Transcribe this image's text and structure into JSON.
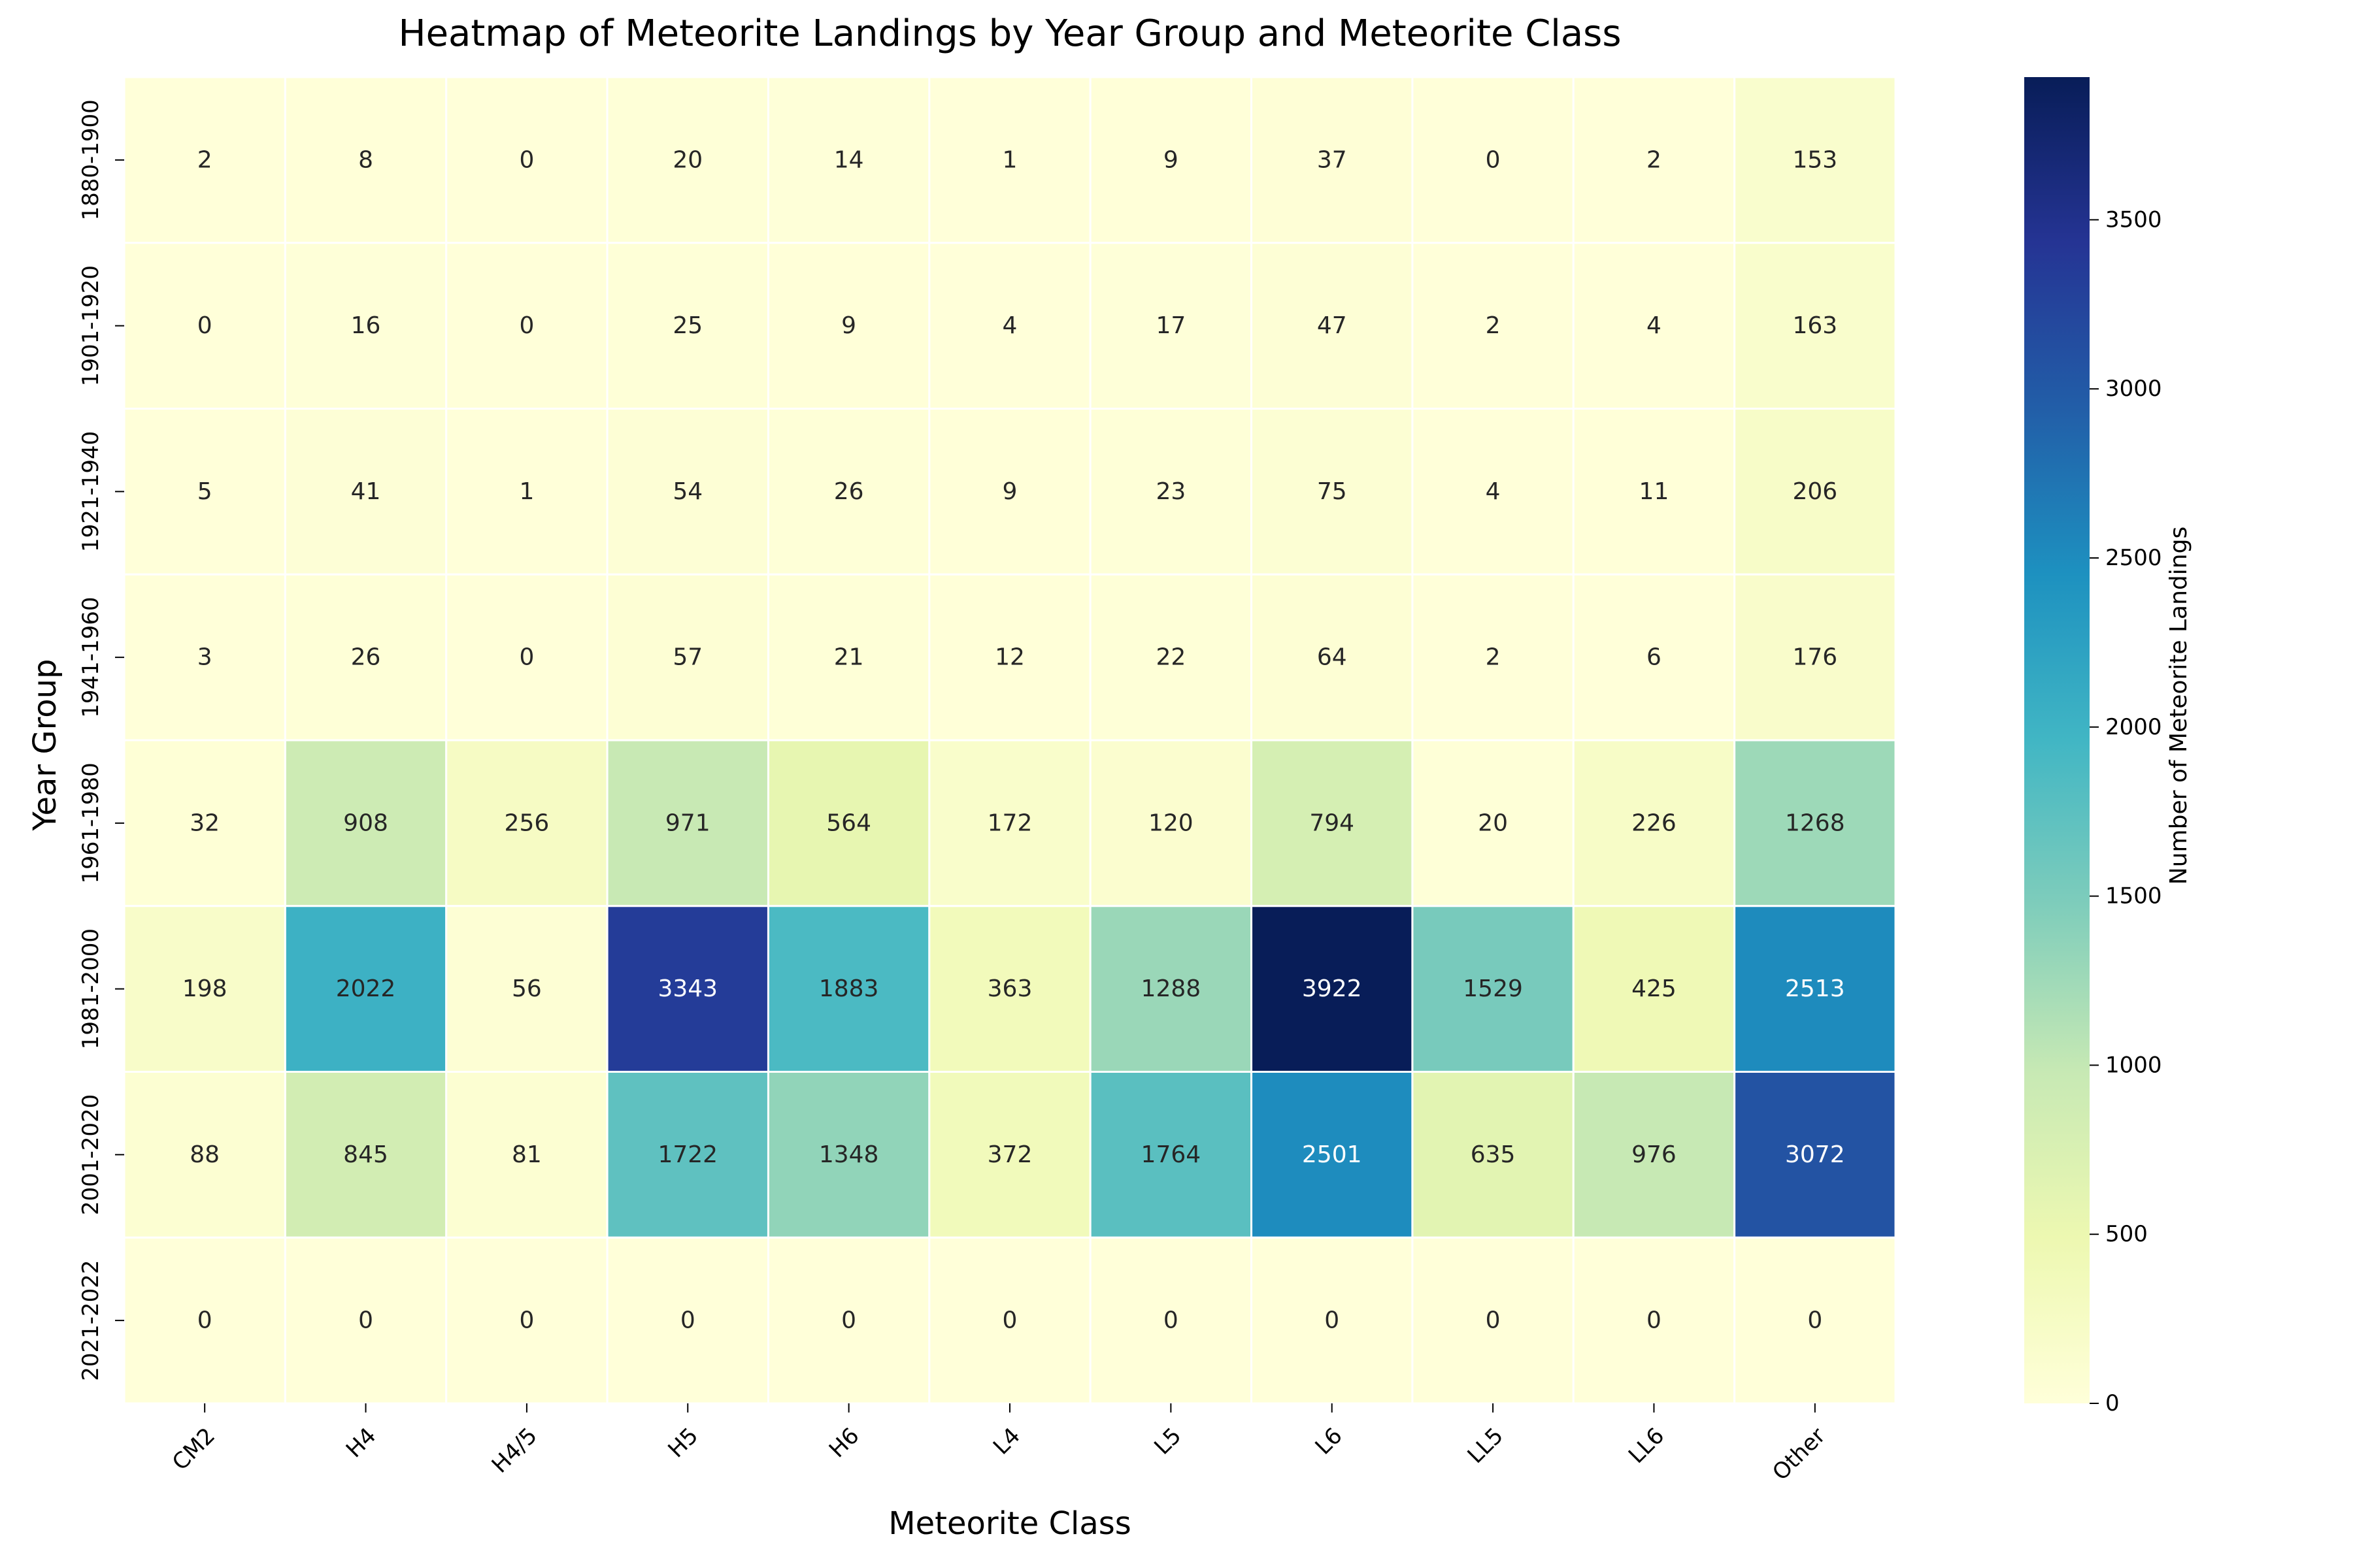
{
  "chart_data": {
    "type": "heatmap",
    "title": "Heatmap of Meteorite Landings by Year Group and Meteorite Class",
    "xlabel": "Meteorite Class",
    "ylabel": "Year Group",
    "colorbar_label": "Number of Meteorite Landings",
    "colormap": "YlGnBu",
    "colormap_stops": [
      "#ffffd9",
      "#edf8b1",
      "#c7e9b4",
      "#7fcdbb",
      "#41b6c4",
      "#1d91c0",
      "#225ea8",
      "#253494",
      "#081d58"
    ],
    "vmin": 0,
    "vmax": 3922,
    "colorbar_ticks": [
      0,
      500,
      1000,
      1500,
      2000,
      2500,
      3000,
      3500
    ],
    "x_categories": [
      "CM2",
      "H4",
      "H4/5",
      "H5",
      "H6",
      "L4",
      "L5",
      "L6",
      "LL5",
      "LL6",
      "Other"
    ],
    "y_categories": [
      "1880-1900",
      "1901-1920",
      "1921-1940",
      "1941-1960",
      "1961-1980",
      "1981-2000",
      "2001-2020",
      "2021-2022"
    ],
    "values": [
      [
        2,
        8,
        0,
        20,
        14,
        1,
        9,
        37,
        0,
        2,
        153
      ],
      [
        0,
        16,
        0,
        25,
        9,
        4,
        17,
        47,
        2,
        4,
        163
      ],
      [
        5,
        41,
        1,
        54,
        26,
        9,
        23,
        75,
        4,
        11,
        206
      ],
      [
        3,
        26,
        0,
        57,
        21,
        12,
        22,
        64,
        2,
        6,
        176
      ],
      [
        32,
        908,
        256,
        971,
        564,
        172,
        120,
        794,
        20,
        226,
        1268
      ],
      [
        198,
        2022,
        56,
        3343,
        1883,
        363,
        1288,
        3922,
        1529,
        425,
        2513
      ],
      [
        88,
        845,
        81,
        1722,
        1348,
        372,
        1764,
        2501,
        635,
        976,
        3072
      ],
      [
        0,
        0,
        0,
        0,
        0,
        0,
        0,
        0,
        0,
        0,
        0
      ]
    ],
    "annotated": true,
    "cell_borders": "white"
  }
}
